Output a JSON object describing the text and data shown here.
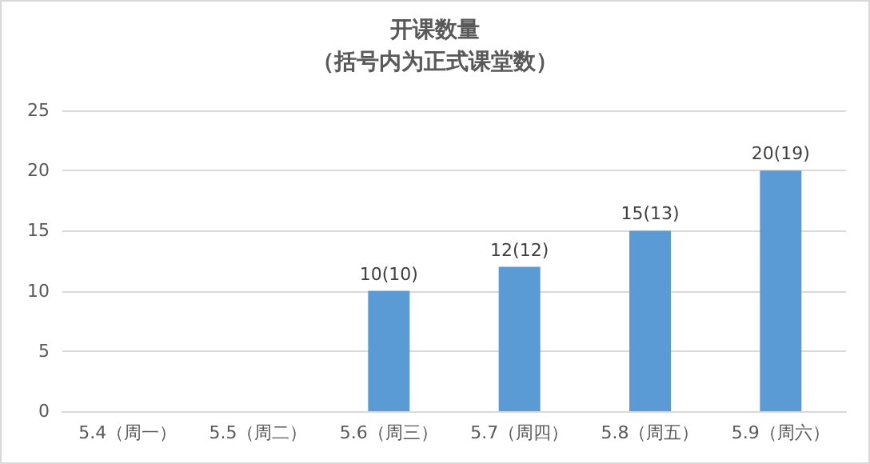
{
  "chart_data": {
    "type": "bar",
    "title": "开课数量",
    "subtitle": "（括号内为正式课堂数）",
    "categories": [
      "5.4（周一）",
      "5.5（周二）",
      "5.6（周三）",
      "5.7（周四）",
      "5.8（周五）",
      "5.9（周六）"
    ],
    "values": [
      null,
      null,
      10,
      12,
      15,
      20
    ],
    "value_labels": [
      null,
      null,
      "10(10)",
      "12(12)",
      "15(13)",
      "20(19)"
    ],
    "color": "#5b9bd5",
    "ylim": [
      0,
      25
    ],
    "yticks": [
      0,
      5,
      10,
      15,
      20,
      25
    ],
    "grid": "y"
  }
}
